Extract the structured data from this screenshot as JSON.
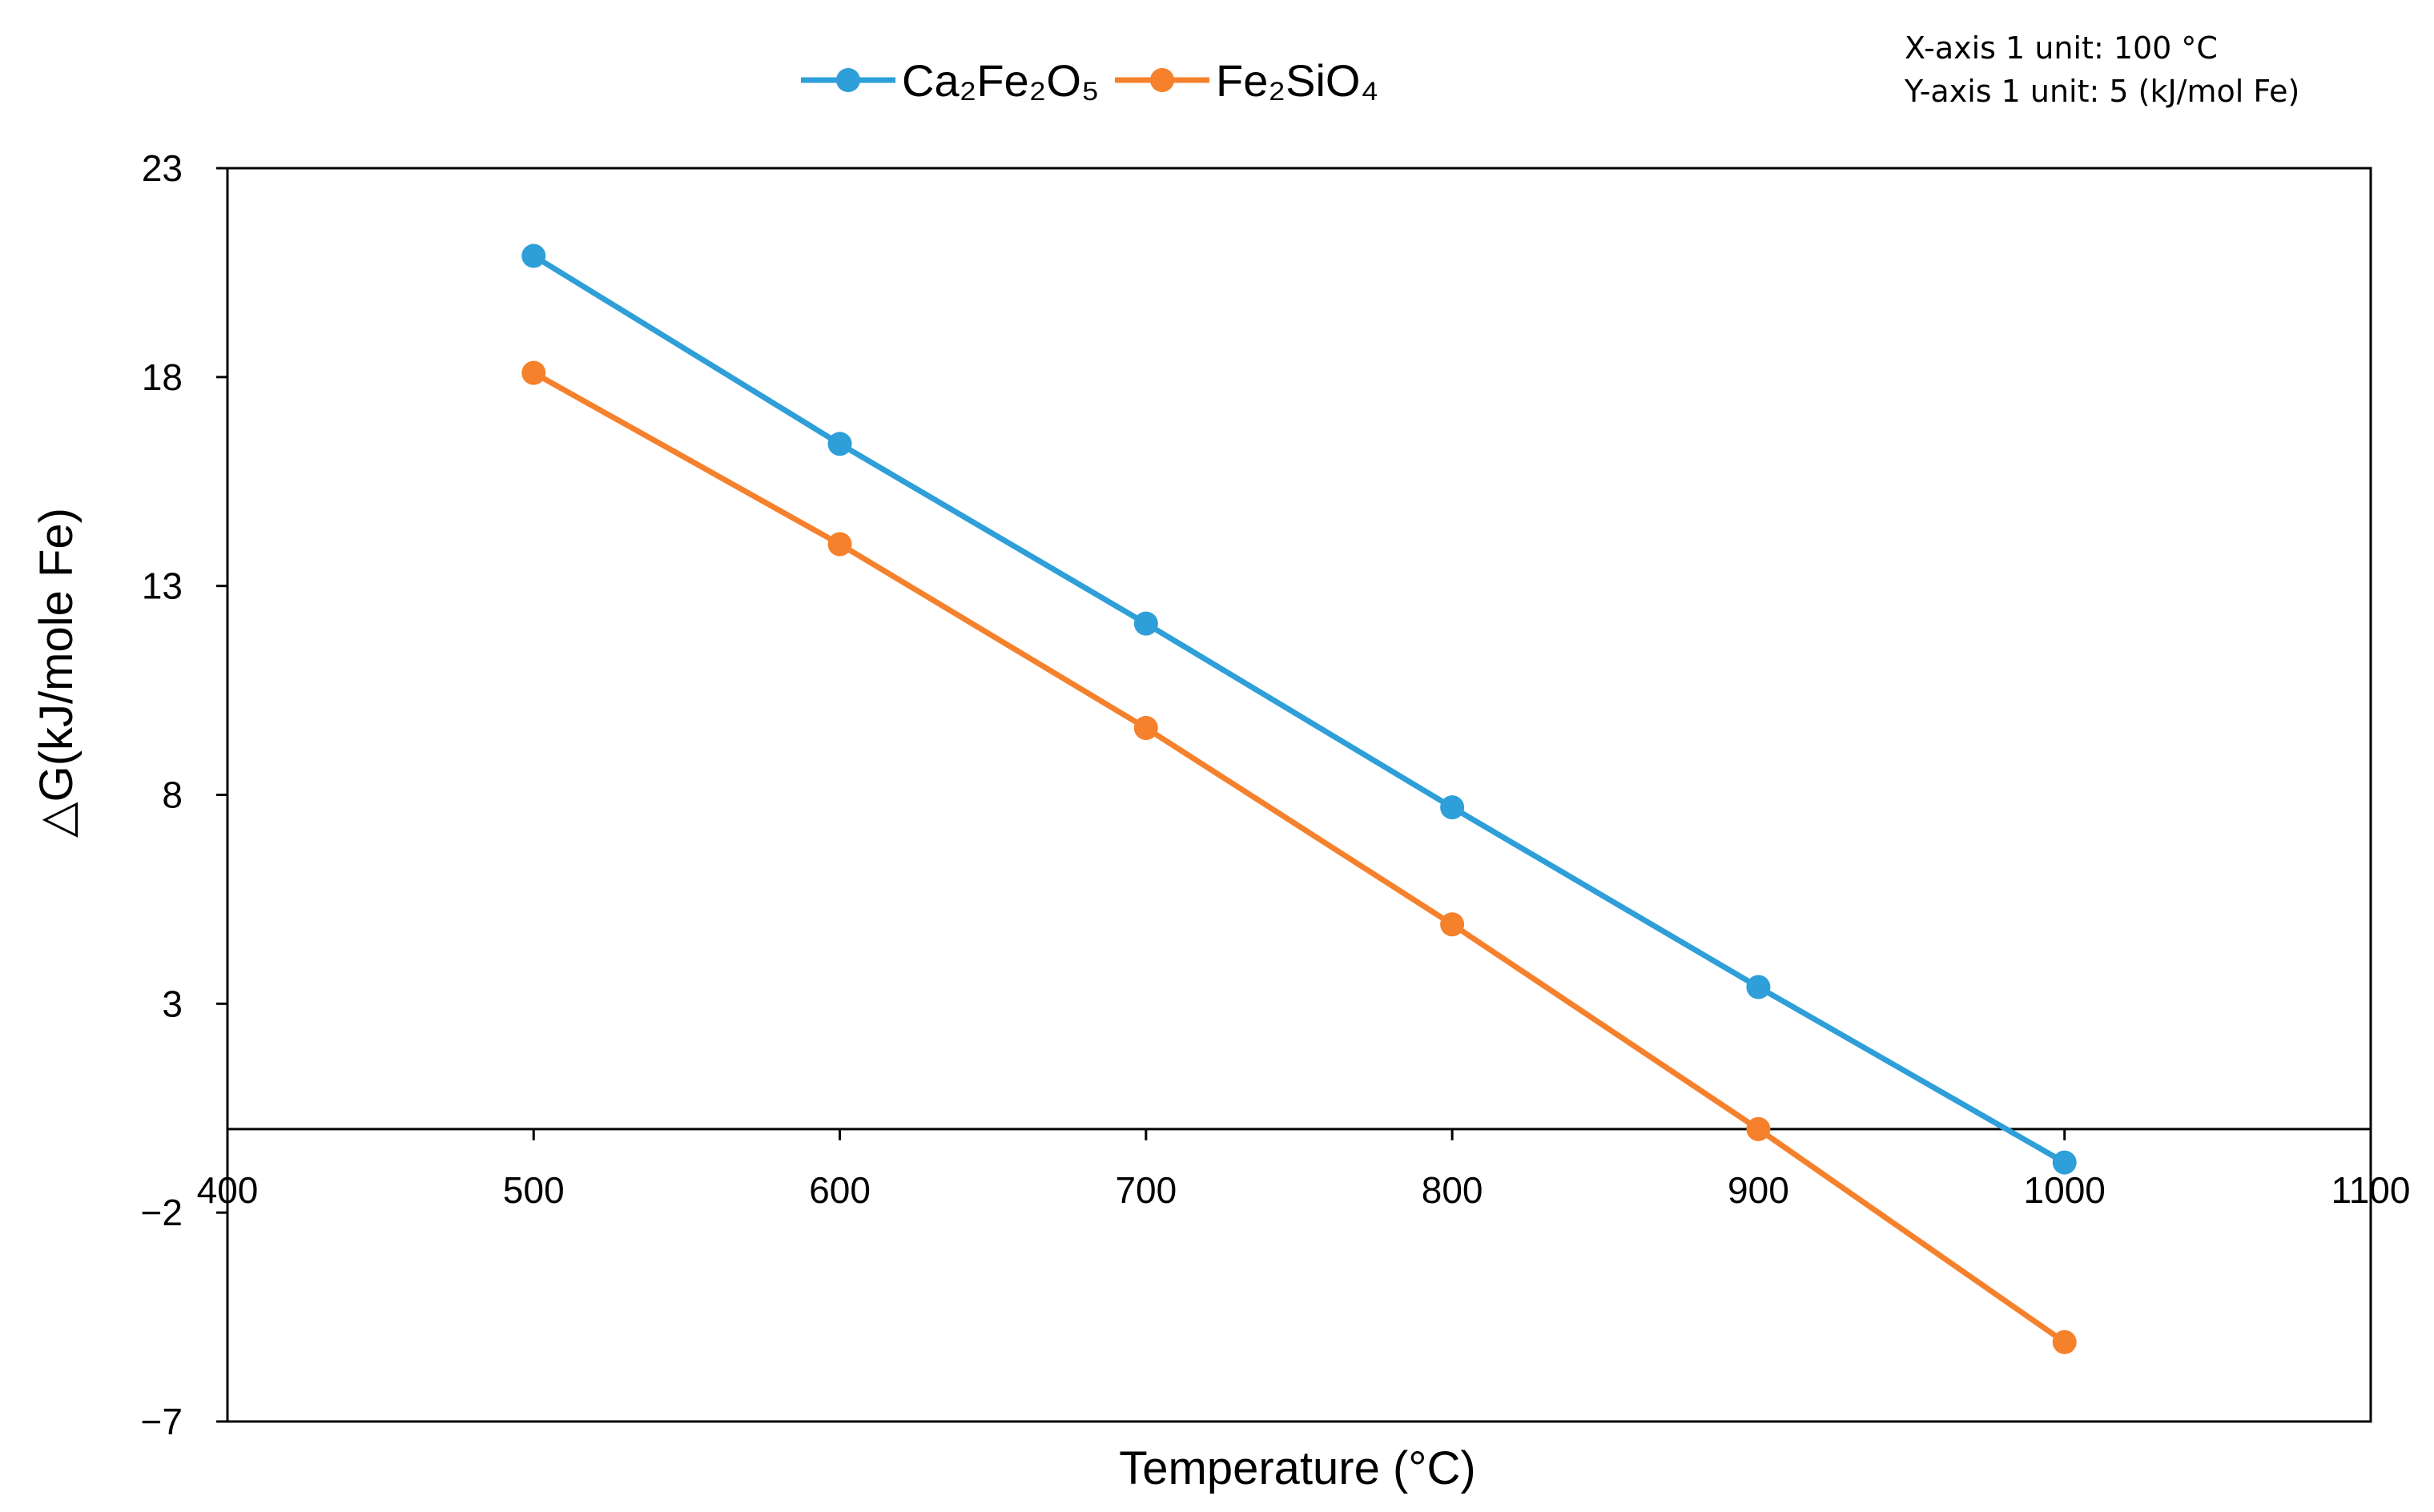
{
  "chart_data": {
    "type": "line",
    "title": "",
    "xlabel": "Temperature (°C)",
    "ylabel": "△G(kJ/mole Fe)",
    "xlim": [
      400,
      1100
    ],
    "ylim": [
      -7,
      23
    ],
    "xticks": [
      400,
      500,
      600,
      700,
      800,
      900,
      1000,
      1100
    ],
    "yticks": [
      -7,
      -2,
      3,
      8,
      13,
      18,
      23
    ],
    "ytick_labels": [
      "−7",
      "−2",
      "3",
      "8",
      "13",
      "18",
      "23"
    ],
    "grid": false,
    "legend": "top-center",
    "x": [
      500,
      600,
      700,
      800,
      900,
      1000
    ],
    "series": [
      {
        "name": "Ca₂Fe₂O₅",
        "color": "#2e9fd8",
        "values": [
          20.9,
          16.4,
          12.1,
          7.7,
          3.4,
          -0.8
        ]
      },
      {
        "name": "Fe₂SiO₄",
        "color": "#f5812c",
        "values": [
          18.1,
          14.0,
          9.6,
          4.9,
          0.0,
          -5.1
        ]
      }
    ],
    "notes": [
      "X-axis 1 unit: 100 °C",
      "Y-axis 1 unit: 5 (kJ/mol Fe)"
    ]
  }
}
